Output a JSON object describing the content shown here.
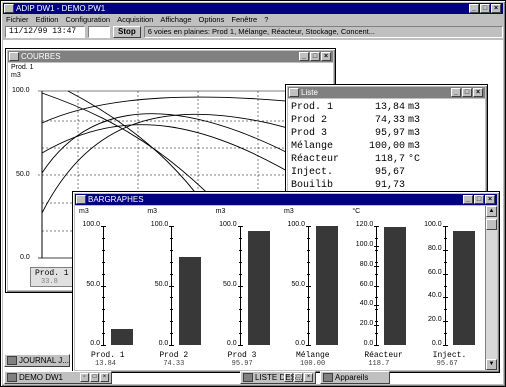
{
  "app": {
    "title": "ADIP DW1 - DEMO.PW1",
    "menu": [
      "Fichier",
      "Edition",
      "Configuration",
      "Acquisition",
      "Affichage",
      "Options",
      "Fenêtre",
      "?"
    ],
    "status_time": "11/12/99  13:47",
    "status_placeholder": "Stop",
    "stop_label": "Stop",
    "status_message": "6 voies en plaines: Prod 1, Mélange, Réacteur, Stockage, Concent..."
  },
  "courbes": {
    "title": "COURBES",
    "legend_label": "Prod. 1",
    "unit": "m3",
    "y_ticks": [
      "100.0",
      "50.0",
      "0.0"
    ],
    "bottom_label": "Prod. 1",
    "bottom_value": "33.8"
  },
  "liste": {
    "title": "Liste",
    "rows": [
      {
        "name": "Prod. 1",
        "value": "13,84",
        "unit": "m3"
      },
      {
        "name": "Prod 2",
        "value": "74,33",
        "unit": "m3"
      },
      {
        "name": "Prod 3",
        "value": "95,97",
        "unit": "m3"
      },
      {
        "name": "Mélange",
        "value": "100,00",
        "unit": "m3"
      },
      {
        "name": "Réacteur",
        "value": "118,7",
        "unit": "°C"
      },
      {
        "name": "Inject.",
        "value": "95,67",
        "unit": ""
      },
      {
        "name": "Bouilib",
        "value": "91,73",
        "unit": ""
      }
    ]
  },
  "bargraphes": {
    "title": "BARGRAPHES",
    "bars": [
      {
        "unit": "m3",
        "ticks": [
          "100.0",
          "50.0",
          "0.0"
        ],
        "max": 100,
        "value": 13.84,
        "name": "Prod. 1",
        "value_label": "13.84"
      },
      {
        "unit": "m3",
        "ticks": [
          "100.0",
          "50.0",
          "0.0"
        ],
        "max": 100,
        "value": 74.33,
        "name": "Prod 2",
        "value_label": "74.33"
      },
      {
        "unit": "m3",
        "ticks": [
          "100.0",
          "50.0",
          "0.0"
        ],
        "max": 100,
        "value": 95.97,
        "name": "Prod 3",
        "value_label": "95.97"
      },
      {
        "unit": "m3",
        "ticks": [
          "100.0",
          "50.0",
          "0.0"
        ],
        "max": 100,
        "value": 100.0,
        "name": "Mélange",
        "value_label": "100.00"
      },
      {
        "unit": "°C",
        "ticks": [
          "120.0",
          "100.0",
          "80.0",
          "60.0",
          "40.0",
          "20.0",
          "0.0"
        ],
        "max": 120,
        "value": 118.7,
        "name": "Réacteur",
        "value_label": "118.7"
      },
      {
        "unit": "",
        "ticks": [
          "100.0",
          "80.0",
          "60.0",
          "40.0",
          "20.0",
          "0.0"
        ],
        "max": 100,
        "value": 95.67,
        "name": "Inject.",
        "value_label": "95.67"
      }
    ]
  },
  "taskbar": {
    "journal": "JOURNAL J...",
    "demo": "DEMO DW1",
    "liste": "LISTE DES...",
    "appareils": "Appareils"
  },
  "colors": {
    "titlebar_active": "#000080",
    "titlebar_inactive": "#808080",
    "window_face": "#c0c0c0",
    "bar_fill": "#383838"
  }
}
